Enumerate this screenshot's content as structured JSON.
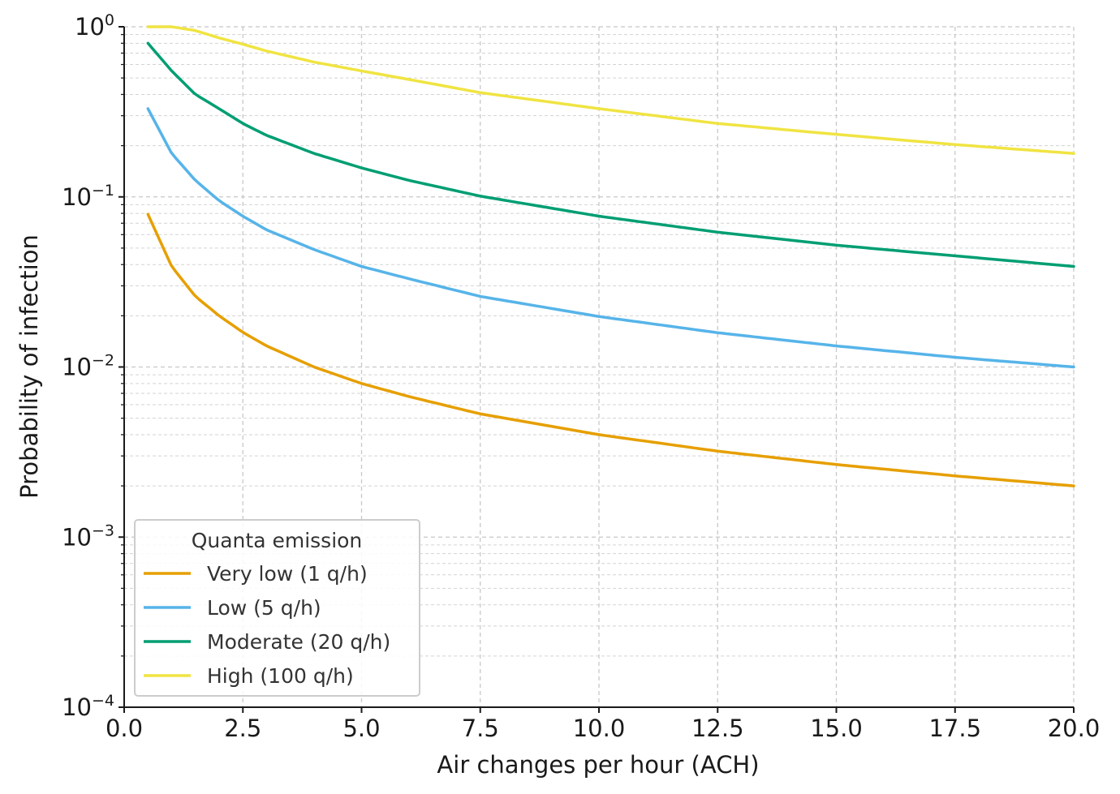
{
  "chart_data": {
    "type": "line",
    "title": "",
    "xlabel": "Air changes per hour (ACH)",
    "ylabel": "Probability of infection",
    "xlim": [
      0,
      20
    ],
    "ylim": [
      0.0001,
      1
    ],
    "yscale": "log",
    "grid": true,
    "x_ticks": [
      "0.0",
      "2.5",
      "5.0",
      "7.5",
      "10.0",
      "12.5",
      "15.0",
      "17.5",
      "20.0"
    ],
    "y_ticks": [
      {
        "base": "10",
        "exp": "0"
      },
      {
        "base": "10",
        "exp": "−1"
      },
      {
        "base": "10",
        "exp": "−2"
      },
      {
        "base": "10",
        "exp": "−3"
      },
      {
        "base": "10",
        "exp": "−4"
      }
    ],
    "legend": {
      "title": "Quanta emission",
      "placement": "lower-left"
    },
    "x": [
      0.5,
      1.0,
      1.5,
      2.0,
      2.5,
      3.0,
      4.0,
      5.0,
      6.0,
      7.5,
      10.0,
      12.5,
      15.0,
      17.5,
      20.0
    ],
    "series": [
      {
        "name": "Very low (1 q/h)",
        "color": "#E69F00",
        "values": [
          0.079,
          0.039,
          0.026,
          0.02,
          0.016,
          0.0133,
          0.01,
          0.008,
          0.0067,
          0.0053,
          0.004,
          0.0032,
          0.00267,
          0.00229,
          0.002
        ]
      },
      {
        "name": "Low (5 q/h)",
        "color": "#56B4E9",
        "values": [
          0.33,
          0.18,
          0.125,
          0.095,
          0.077,
          0.064,
          0.049,
          0.039,
          0.033,
          0.026,
          0.0198,
          0.0159,
          0.0133,
          0.0114,
          0.01
        ]
      },
      {
        "name": "Moderate (20 q/h)",
        "color": "#009E73",
        "values": [
          0.8,
          0.55,
          0.4,
          0.33,
          0.27,
          0.23,
          0.18,
          0.148,
          0.125,
          0.101,
          0.077,
          0.062,
          0.052,
          0.045,
          0.039
        ]
      },
      {
        "name": "High (100 q/h)",
        "color": "#F0E442",
        "values": [
          1.0,
          1.0,
          0.95,
          0.86,
          0.79,
          0.72,
          0.62,
          0.55,
          0.49,
          0.41,
          0.33,
          0.27,
          0.233,
          0.203,
          0.18
        ]
      }
    ]
  }
}
